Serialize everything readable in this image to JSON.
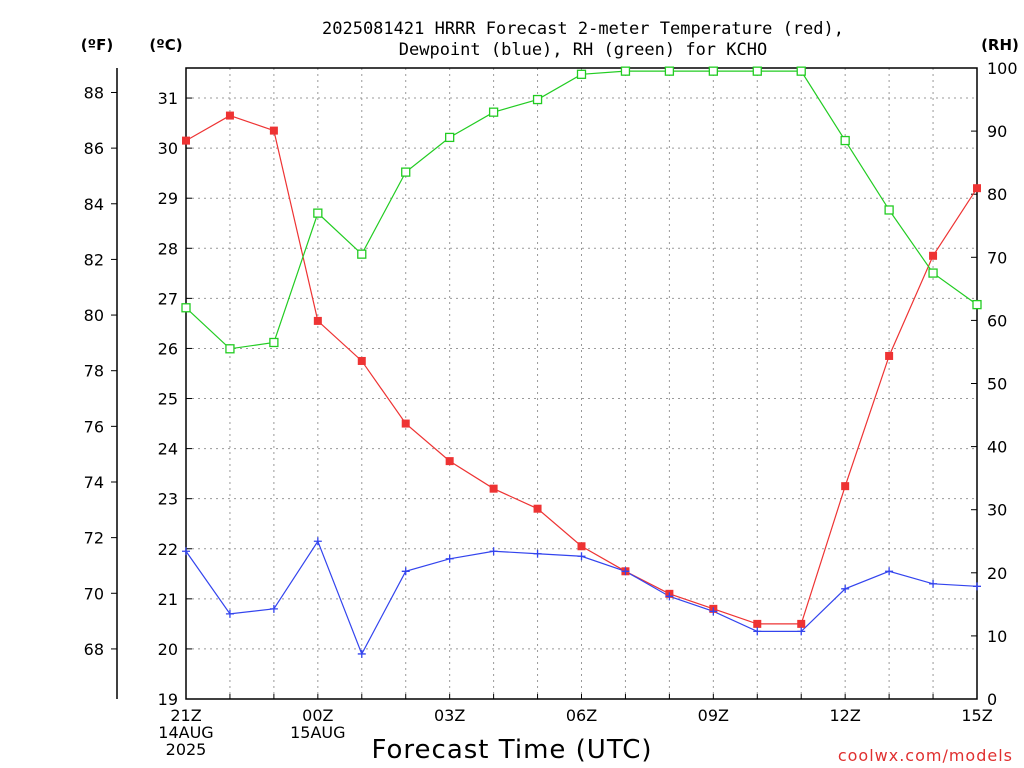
{
  "title_line1": "2025081421 HRRR Forecast 2-meter Temperature (red),",
  "title_line2": "Dewpoint (blue), RH (green) for KCHO",
  "credit": "coolwx.com/models",
  "units": {
    "left_f": "(ºF)",
    "left_c": "(ºC)",
    "right_rh": "(RH)"
  },
  "chart_data": {
    "type": "line",
    "xlabel": "Forecast Time (UTC)",
    "x_hours": [
      0,
      1,
      2,
      3,
      4,
      5,
      6,
      7,
      8,
      9,
      10,
      11,
      12,
      13,
      14,
      15,
      16,
      17,
      18
    ],
    "xlim": [
      0,
      18
    ],
    "x_ticks": [
      {
        "h": 0,
        "lines": [
          "21Z",
          "14AUG",
          "2025"
        ]
      },
      {
        "h": 3,
        "lines": [
          "00Z",
          "15AUG"
        ]
      },
      {
        "h": 6,
        "lines": [
          "03Z"
        ]
      },
      {
        "h": 9,
        "lines": [
          "06Z"
        ]
      },
      {
        "h": 12,
        "lines": [
          "09Z"
        ]
      },
      {
        "h": 15,
        "lines": [
          "12Z"
        ]
      },
      {
        "h": 18,
        "lines": [
          "15Z"
        ]
      }
    ],
    "y_celsius": {
      "ylim": [
        19,
        31.6
      ],
      "ticks": [
        19,
        20,
        21,
        22,
        23,
        24,
        25,
        26,
        27,
        28,
        29,
        30,
        31
      ]
    },
    "y_fahrenheit": {
      "ticks": [
        68,
        70,
        72,
        74,
        76,
        78,
        80,
        82,
        84,
        86,
        88
      ]
    },
    "y_rh": {
      "ylim": [
        0,
        100
      ],
      "ticks": [
        0,
        10,
        20,
        30,
        40,
        50,
        60,
        70,
        80,
        90,
        100
      ]
    },
    "grid": true,
    "series": [
      {
        "name": "Temperature",
        "axis": "celsius",
        "color": "#ee3333",
        "marker": "filled-square",
        "values": [
          30.15,
          30.65,
          30.35,
          26.55,
          25.75,
          24.5,
          23.75,
          23.2,
          22.8,
          22.05,
          21.55,
          21.1,
          20.8,
          20.5,
          20.5,
          23.25,
          25.85,
          27.85,
          29.2
        ]
      },
      {
        "name": "Dewpoint",
        "axis": "celsius",
        "color": "#3344ee",
        "marker": "plus",
        "values": [
          21.95,
          20.7,
          20.8,
          22.15,
          19.9,
          21.55,
          21.8,
          21.95,
          21.9,
          21.85,
          21.55,
          21.05,
          20.75,
          20.35,
          20.35,
          21.2,
          21.55,
          21.3,
          21.25
        ]
      },
      {
        "name": "RH",
        "axis": "rh",
        "color": "#22cc22",
        "marker": "open-square",
        "values": [
          62,
          55.5,
          56.5,
          77,
          70.5,
          83.5,
          89,
          93,
          95,
          99,
          99.5,
          99.5,
          99.5,
          99.5,
          99.5,
          88.5,
          77.5,
          67.5,
          62.5
        ]
      }
    ]
  }
}
